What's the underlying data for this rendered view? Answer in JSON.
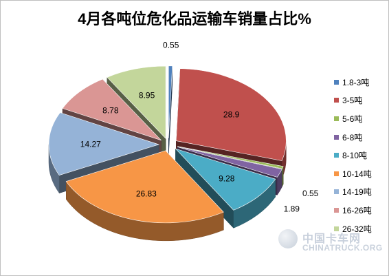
{
  "chart_data": {
    "type": "pie",
    "title": "4月各吨位危化品运输车销量占比%",
    "categories": [
      "1.8-3吨",
      "3-5吨",
      "5-6吨",
      "6-8吨",
      "8-10吨",
      "10-14吨",
      "14-19吨",
      "16-26吨",
      "26-32吨"
    ],
    "values": [
      0.55,
      28.9,
      0.55,
      1.89,
      9.28,
      26.83,
      14.27,
      8.78,
      8.95
    ],
    "value_labels": [
      "0.55",
      "28.9",
      "0.55",
      "1.89",
      "9.28",
      "26.83",
      "14.27",
      "8.78",
      "8.95"
    ],
    "colors": [
      "#4f81bd",
      "#c0504d",
      "#9bbb59",
      "#8064a2",
      "#4bacc6",
      "#f79646",
      "#95b3d7",
      "#da9694",
      "#c3d69b"
    ],
    "style": "3d-exploded",
    "legend_position": "right"
  },
  "watermark": {
    "cn": "中国卡车网",
    "en": "CHINATRUCK.ORG"
  }
}
